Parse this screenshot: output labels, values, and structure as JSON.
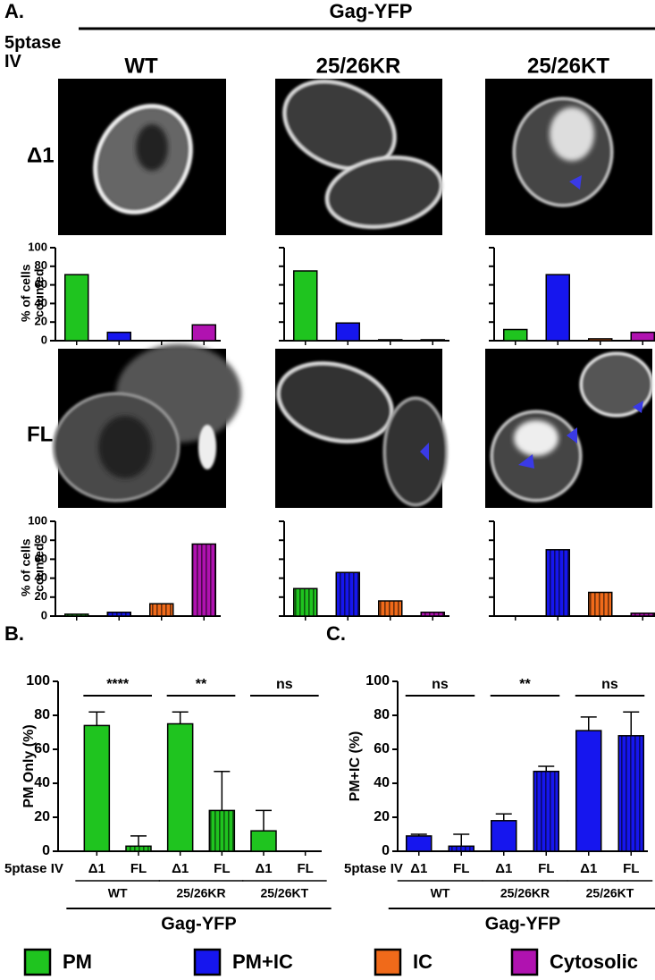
{
  "figure": {
    "panel_labels": [
      "A.",
      "B.",
      "C."
    ],
    "header": "Gag-YFP",
    "row_header": "5ptase IV",
    "columns": [
      "WT",
      "25/26KR",
      "25/26KT"
    ],
    "rows": [
      "Δ1",
      "FL"
    ]
  },
  "legend": [
    {
      "name": "PM",
      "color": "#1fc41f"
    },
    {
      "name": "PM+IC",
      "color": "#1616ee"
    },
    {
      "name": "IC",
      "color": "#f06a1a"
    },
    {
      "name": "Cytosolic",
      "color": "#b012b0"
    }
  ],
  "chart_data": [
    {
      "type": "bar",
      "ylabel": "% of cells counted",
      "categories": [
        null,
        null,
        null,
        null
      ],
      "values": [
        71,
        9,
        0,
        17
      ],
      "colors": [
        "#1fc41f",
        "#1616ee",
        "#f06a1a",
        "#b012b0"
      ],
      "ylim": [
        0,
        100
      ],
      "yticks": [
        0,
        20,
        40,
        60,
        80,
        100
      ],
      "tick_labels": true,
      "hatch": false
    },
    {
      "type": "bar",
      "categories": [
        null,
        null,
        null,
        null
      ],
      "values": [
        75,
        19,
        1,
        1
      ],
      "colors": [
        "#1fc41f",
        "#1616ee",
        "#f06a1a",
        "#b012b0"
      ],
      "ylim": [
        0,
        100
      ],
      "yticks": [
        0,
        20,
        40,
        60,
        80,
        100
      ],
      "tick_labels": false,
      "hatch": false
    },
    {
      "type": "bar",
      "categories": [
        null,
        null,
        null,
        null
      ],
      "values": [
        12,
        71,
        2,
        9
      ],
      "colors": [
        "#1fc41f",
        "#1616ee",
        "#f06a1a",
        "#b012b0"
      ],
      "ylim": [
        0,
        100
      ],
      "yticks": [
        0,
        20,
        40,
        60,
        80,
        100
      ],
      "tick_labels": false,
      "hatch": false
    },
    {
      "type": "bar",
      "ylabel": "% of cells counted",
      "categories": [
        null,
        null,
        null,
        null
      ],
      "values": [
        2,
        4,
        13,
        76
      ],
      "colors": [
        "#1fc41f",
        "#1616ee",
        "#f06a1a",
        "#b012b0"
      ],
      "ylim": [
        0,
        100
      ],
      "yticks": [
        0,
        20,
        40,
        60,
        80,
        100
      ],
      "tick_labels": true,
      "hatch": true
    },
    {
      "type": "bar",
      "categories": [
        null,
        null,
        null,
        null
      ],
      "values": [
        29,
        46,
        16,
        4
      ],
      "colors": [
        "#1fc41f",
        "#1616ee",
        "#f06a1a",
        "#b012b0"
      ],
      "ylim": [
        0,
        100
      ],
      "yticks": [
        0,
        20,
        40,
        60,
        80,
        100
      ],
      "tick_labels": false,
      "hatch": true
    },
    {
      "type": "bar",
      "categories": [
        null,
        null,
        null,
        null
      ],
      "values": [
        0,
        70,
        25,
        3
      ],
      "colors": [
        "#1fc41f",
        "#1616ee",
        "#f06a1a",
        "#b012b0"
      ],
      "ylim": [
        0,
        100
      ],
      "yticks": [
        0,
        20,
        40,
        60,
        80,
        100
      ],
      "tick_labels": false,
      "hatch": true
    },
    {
      "type": "bar",
      "ylabel": "PM Only (%)",
      "xlabel_row": "5ptase IV",
      "categories": [
        "Δ1",
        "FL",
        "Δ1",
        "FL",
        "Δ1",
        "FL"
      ],
      "groups": [
        "WT",
        "25/26KR",
        "25/26KT"
      ],
      "xlabel": "Gag-YFP",
      "significance": [
        "****",
        "**",
        "ns"
      ],
      "values": [
        74,
        3,
        75,
        24,
        12,
        0
      ],
      "errors": [
        8,
        6,
        7,
        23,
        12,
        0
      ],
      "color": "#1fc41f",
      "hatch": [
        false,
        true,
        false,
        true,
        false,
        true
      ],
      "ylim": [
        0,
        100
      ],
      "yticks": [
        0,
        20,
        40,
        60,
        80,
        100
      ],
      "tick_labels": true
    },
    {
      "type": "bar",
      "ylabel": "PM+IC (%)",
      "xlabel_row": "5ptase IV",
      "categories": [
        "Δ1",
        "FL",
        "Δ1",
        "FL",
        "Δ1",
        "FL"
      ],
      "groups": [
        "WT",
        "25/26KR",
        "25/26KT"
      ],
      "xlabel": "Gag-YFP",
      "significance": [
        "ns",
        "**",
        "ns"
      ],
      "values": [
        9,
        3,
        18,
        47,
        71,
        68
      ],
      "errors": [
        1,
        7,
        4,
        3,
        8,
        14
      ],
      "color": "#1616ee",
      "hatch": [
        false,
        true,
        false,
        true,
        false,
        true
      ],
      "ylim": [
        0,
        100
      ],
      "yticks": [
        0,
        20,
        40,
        60,
        80,
        100
      ],
      "tick_labels": true
    }
  ]
}
